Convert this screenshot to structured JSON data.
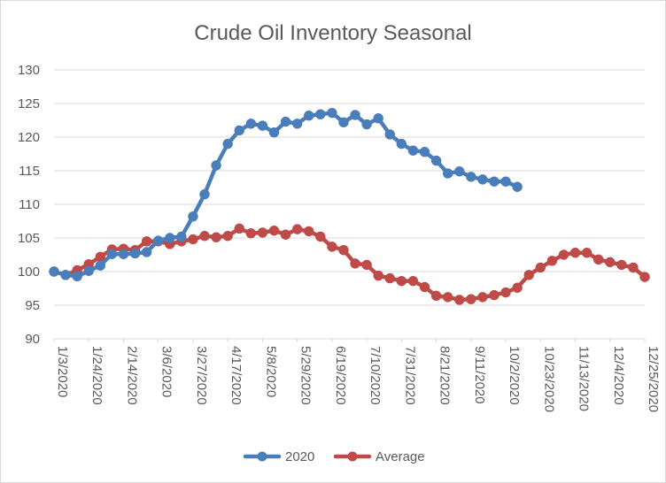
{
  "chart_data": {
    "type": "line",
    "title": "Crude Oil Inventory Seasonal",
    "xlabel": "",
    "ylabel": "",
    "ylim": [
      90,
      130
    ],
    "yticks": [
      90,
      95,
      100,
      105,
      110,
      115,
      120,
      125,
      130
    ],
    "grid": true,
    "legend": "bottom",
    "x_tick_labels": [
      "1/3/2020",
      "1/24/2020",
      "2/14/2020",
      "3/6/2020",
      "3/27/2020",
      "4/17/2020",
      "5/8/2020",
      "5/29/2020",
      "6/19/2020",
      "7/10/2020",
      "7/31/2020",
      "8/21/2020",
      "9/11/2020",
      "10/2/2020",
      "10/23/2020",
      "11/13/2020",
      "12/4/2020",
      "12/25/2020"
    ],
    "x_tick_every": 3,
    "n_points": 52,
    "series": [
      {
        "name": "2020",
        "color": "#4a7ebb",
        "values": [
          100.0,
          99.5,
          99.3,
          100.1,
          100.9,
          102.6,
          102.6,
          102.7,
          102.9,
          104.6,
          105.0,
          105.2,
          108.2,
          111.5,
          115.8,
          119.0,
          121.0,
          122.0,
          121.7,
          120.7,
          122.3,
          122.0,
          123.2,
          123.4,
          123.6,
          122.2,
          123.3,
          121.9,
          122.8,
          120.4,
          119.0,
          118.0,
          117.8,
          116.5,
          114.6,
          114.9,
          114.1,
          113.7,
          113.4,
          113.4,
          112.6
        ]
      },
      {
        "name": "Average",
        "color": "#be4b48",
        "values": [
          100.0,
          99.5,
          100.2,
          101.1,
          102.2,
          103.3,
          103.4,
          103.2,
          104.5,
          104.5,
          104.1,
          104.5,
          104.8,
          105.3,
          105.1,
          105.3,
          106.4,
          105.7,
          105.8,
          106.1,
          105.5,
          106.3,
          106.0,
          105.2,
          103.7,
          103.2,
          101.2,
          101.0,
          99.4,
          99.0,
          98.6,
          98.6,
          97.7,
          96.4,
          96.2,
          95.8,
          95.9,
          96.2,
          96.5,
          96.9,
          97.6,
          99.5,
          100.6,
          101.6,
          102.5,
          102.8,
          102.8,
          101.8,
          101.4,
          101.0,
          100.6,
          99.2
        ]
      }
    ]
  }
}
